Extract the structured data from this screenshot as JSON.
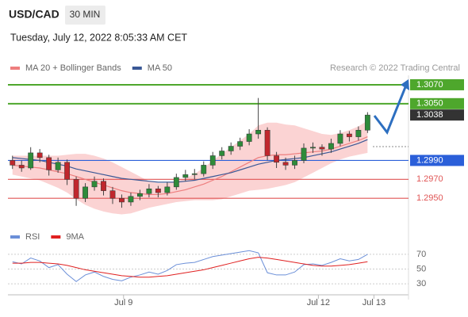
{
  "chart_data": {
    "type": "candlestick",
    "title": "USD/CAD",
    "timeframe": "30 MIN",
    "subtitle": "Tuesday, July 12, 2022 8:05:33 AM CET",
    "source": "Research © 2022 Trading Central",
    "xlim": [
      -0.5,
      43.5
    ],
    "xticks": [
      {
        "value": 12.2,
        "label": "Jul 9"
      },
      {
        "value": 33.6,
        "label": "Jul 12"
      },
      {
        "value": 39.7,
        "label": "Jul 13"
      }
    ],
    "ylim": [
      1.292,
      1.308
    ],
    "up_color": "#2e8b3a",
    "down_color": "#c0272d",
    "ohlc": [
      [
        1.299,
        1.2995,
        1.2981,
        1.2985
      ],
      [
        1.2985,
        1.299,
        1.2978,
        1.2982
      ],
      [
        1.2982,
        1.3004,
        1.298,
        1.2998
      ],
      [
        1.2998,
        1.3002,
        1.2988,
        1.2993
      ],
      [
        1.2993,
        1.2996,
        1.2974,
        1.298
      ],
      [
        1.298,
        1.2993,
        1.2977,
        1.2988
      ],
      [
        1.2988,
        1.2991,
        1.2964,
        1.297
      ],
      [
        1.297,
        1.2973,
        1.2942,
        1.295
      ],
      [
        1.295,
        1.2966,
        1.2946,
        1.2962
      ],
      [
        1.2962,
        1.2973,
        1.2958,
        1.2968
      ],
      [
        1.2968,
        1.2971,
        1.2953,
        1.2958
      ],
      [
        1.2958,
        1.2962,
        1.2944,
        1.295
      ],
      [
        1.295,
        1.2954,
        1.294,
        1.2946
      ],
      [
        1.2946,
        1.2956,
        1.2942,
        1.2952
      ],
      [
        1.2952,
        1.2959,
        1.2948,
        1.2955
      ],
      [
        1.2955,
        1.2965,
        1.2951,
        1.296
      ],
      [
        1.296,
        1.2963,
        1.2951,
        1.2956
      ],
      [
        1.2956,
        1.2967,
        1.2953,
        1.2962
      ],
      [
        1.2962,
        1.2976,
        1.2959,
        1.2972
      ],
      [
        1.2972,
        1.298,
        1.2968,
        1.2975
      ],
      [
        1.2975,
        1.2981,
        1.297,
        1.2976
      ],
      [
        1.2976,
        1.2989,
        1.2973,
        1.2985
      ],
      [
        1.2985,
        1.2999,
        1.2981,
        1.2995
      ],
      [
        1.2995,
        1.3004,
        1.2991,
        1.3
      ],
      [
        1.3,
        1.3009,
        1.2996,
        1.3005
      ],
      [
        1.3005,
        1.3014,
        1.3001,
        1.301
      ],
      [
        1.301,
        1.3023,
        1.3006,
        1.3018
      ],
      [
        1.3018,
        1.3056,
        1.3013,
        1.3022
      ],
      [
        1.3022,
        1.3025,
        1.299,
        1.2995
      ],
      [
        1.2995,
        1.2999,
        1.2982,
        1.2988
      ],
      [
        1.2988,
        1.2993,
        1.298,
        1.2985
      ],
      [
        1.2985,
        1.2995,
        1.2981,
        1.299
      ],
      [
        1.299,
        1.3008,
        1.2987,
        1.3003
      ],
      [
        1.3003,
        1.3009,
        1.2998,
        1.3004
      ],
      [
        1.3004,
        1.3007,
        1.2995,
        1.3002
      ],
      [
        1.3002,
        1.3013,
        1.2998,
        1.3008
      ],
      [
        1.3008,
        1.3022,
        1.3005,
        1.3018
      ],
      [
        1.3018,
        1.3021,
        1.301,
        1.3015
      ],
      [
        1.3015,
        1.3026,
        1.3011,
        1.3022
      ],
      [
        1.3022,
        1.3041,
        1.3019,
        1.3038
      ]
    ],
    "series": [
      {
        "name": "MA 20 + Bollinger Bands",
        "color": "#ee7e7e",
        "band_color": "#fbd3d3",
        "values": [
          1.2985,
          1.2984,
          1.2983,
          1.2982,
          1.298,
          1.2978,
          1.2976,
          1.2973,
          1.297,
          1.2967,
          1.2964,
          1.2961,
          1.2958,
          1.2956,
          1.2955,
          1.2954,
          1.2954,
          1.2955,
          1.2957,
          1.2959,
          1.2962,
          1.2965,
          1.2969,
          1.2973,
          1.2978,
          1.2983,
          1.2988,
          1.2993,
          1.2995,
          1.2996,
          1.2996,
          1.2997,
          1.2998,
          1.2999,
          1.3,
          1.3002,
          1.3005,
          1.3008,
          1.3011,
          1.3015
        ],
        "upper": [
          1.2995,
          1.2995,
          1.2995,
          1.2995,
          1.2995,
          1.2995,
          1.2996,
          1.2997,
          1.2997,
          1.2995,
          1.2992,
          1.2988,
          1.2983,
          1.2978,
          1.2973,
          1.2968,
          1.2966,
          1.2966,
          1.2968,
          1.2971,
          1.2976,
          1.2982,
          1.299,
          1.2997,
          1.3004,
          1.3011,
          1.3018,
          1.3027,
          1.303,
          1.303,
          1.3028,
          1.3027,
          1.3024,
          1.3021,
          1.3018,
          1.3017,
          1.3019,
          1.3022,
          1.3026,
          1.3032
        ],
        "lower": [
          1.2975,
          1.2973,
          1.2971,
          1.2969,
          1.2965,
          1.2961,
          1.2956,
          1.2949,
          1.2943,
          1.2939,
          1.2936,
          1.2934,
          1.2933,
          1.2934,
          1.2937,
          1.294,
          1.2942,
          1.2944,
          1.2946,
          1.2947,
          1.2948,
          1.2948,
          1.2948,
          1.2949,
          1.2952,
          1.2955,
          1.2958,
          1.2959,
          1.296,
          1.2962,
          1.2964,
          1.2967,
          1.2972,
          1.2977,
          1.2982,
          1.2987,
          1.2991,
          1.2994,
          1.2996,
          1.2998
        ]
      },
      {
        "name": "MA 50",
        "color": "#3a5896",
        "values": [
          1.2993,
          1.2992,
          1.2991,
          1.299,
          1.2988,
          1.2986,
          1.2984,
          1.2981,
          1.2979,
          1.2977,
          1.2975,
          1.2973,
          1.2971,
          1.297,
          1.2969,
          1.2968,
          1.2967,
          1.2967,
          1.2967,
          1.2968,
          1.2969,
          1.2971,
          1.2973,
          1.2975,
          1.2977,
          1.298,
          1.2983,
          1.2986,
          1.2988,
          1.299,
          1.2991,
          1.2992,
          1.2993,
          1.2995,
          1.2997,
          1.2999,
          1.3002,
          1.3005,
          1.3008,
          1.3012
        ]
      }
    ],
    "levels": [
      {
        "value": 1.307,
        "label": "1.3070",
        "color": "#4ea72c",
        "boxed": true
      },
      {
        "value": 1.305,
        "label": "1.3050",
        "color": "#4ea72c",
        "boxed": true
      },
      {
        "value": 1.299,
        "label": "1.2990",
        "color": "#2b5fd9",
        "boxed": true
      },
      {
        "value": 1.297,
        "label": "1.2970",
        "color": "#e05555",
        "boxed": false
      },
      {
        "value": 1.295,
        "label": "1.2950",
        "color": "#e05555",
        "boxed": false
      }
    ],
    "current": {
      "value": 1.3038,
      "color": "#333333"
    },
    "rsi": {
      "ylim": [
        15,
        85
      ],
      "yticks": [
        30,
        50,
        70
      ],
      "series": [
        {
          "name": "RSI",
          "color": "#6b8fd8",
          "values": [
            60,
            57,
            65,
            61,
            52,
            56,
            43,
            33,
            42,
            46,
            40,
            36,
            34,
            39,
            42,
            46,
            43,
            48,
            56,
            58,
            59,
            63,
            67,
            69,
            71,
            73,
            75,
            72,
            45,
            42,
            42,
            46,
            56,
            57,
            55,
            59,
            64,
            61,
            63,
            70
          ]
        },
        {
          "name": "9MA",
          "color": "#e02020",
          "values": [
            58,
            58,
            59,
            59,
            58,
            57,
            55,
            52,
            49,
            47,
            45,
            43,
            41,
            40,
            39,
            39,
            40,
            41,
            43,
            45,
            47,
            49,
            52,
            55,
            58,
            61,
            64,
            66,
            65,
            63,
            61,
            59,
            57,
            55,
            54,
            54,
            55,
            56,
            58,
            60
          ]
        }
      ]
    }
  }
}
